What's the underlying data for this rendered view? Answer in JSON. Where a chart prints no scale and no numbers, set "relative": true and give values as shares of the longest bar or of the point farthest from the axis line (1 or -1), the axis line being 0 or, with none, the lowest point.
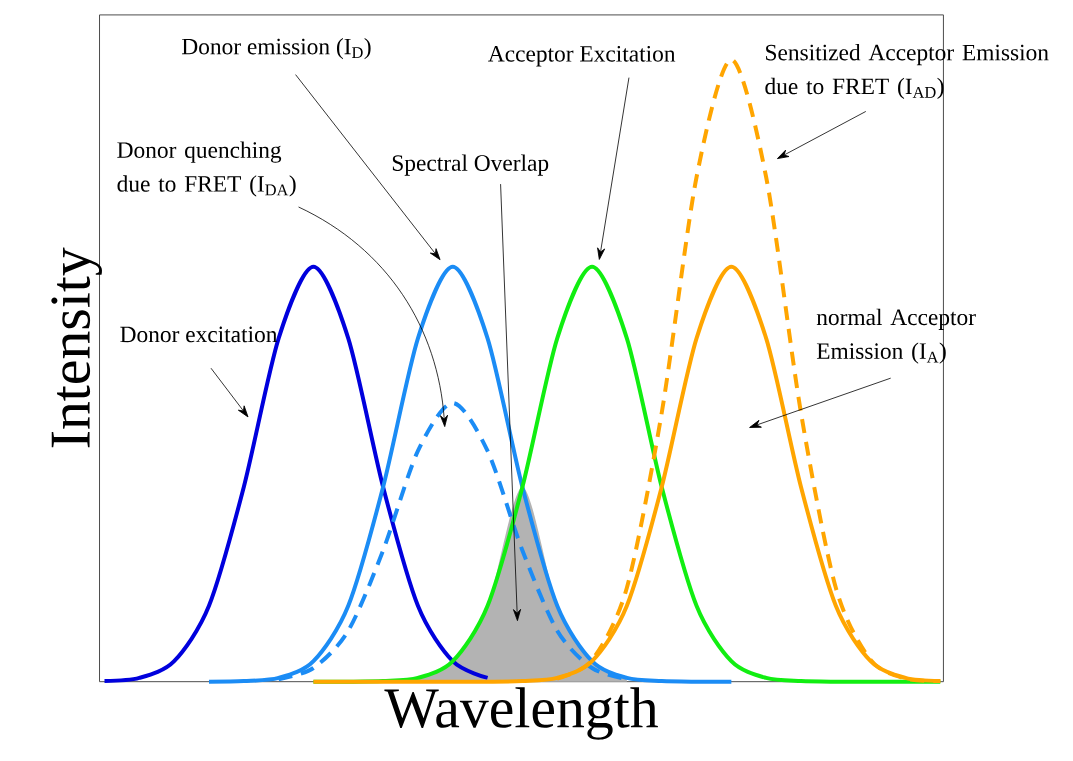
{
  "chart_data": {
    "type": "line",
    "relative": true,
    "xlabel": "Wavelength",
    "ylabel": "Intensity",
    "categories": [
      null,
      null,
      null,
      null,
      null,
      null,
      null,
      null,
      null,
      null,
      null,
      null,
      null,
      null,
      null,
      null,
      null,
      null,
      null,
      null,
      null,
      null,
      null,
      null,
      null
    ],
    "annotations": [
      "Spectral Overlap",
      "Donor excitation",
      "Donor emission (I$_{D}$)",
      "Donor quenching due to FRET (I$_{DA}$)",
      "Acceptor Excitation",
      "normal Acceptor Emission (I$_{A}$)",
      "Sensitized Acceptor Emission due to FRET (I$_{AD}$)"
    ],
    "series": [
      {
        "type": "area",
        "color": "#b3b3b3",
        "values": [
          null,
          null,
          null,
          null,
          null,
          null,
          null,
          null,
          null,
          0.006,
          0.033,
          0.122,
          0.313,
          0.122,
          0.033,
          0.006,
          null,
          null,
          null,
          null,
          null,
          null,
          null,
          null,
          null
        ]
      },
      {
        "color": "#0000dd",
        "values": [
          0.001,
          0.006,
          0.033,
          0.122,
          0.313,
          0.552,
          0.667,
          0.552,
          0.313,
          0.122,
          0.033,
          0.006,
          null,
          null,
          null,
          null,
          null,
          null,
          null,
          null,
          null,
          null,
          null,
          null,
          null
        ]
      },
      {
        "color": "#1b8cf5",
        "values": [
          null,
          null,
          null,
          0,
          0.001,
          0.006,
          0.033,
          0.122,
          0.313,
          0.552,
          0.667,
          0.552,
          0.313,
          0.122,
          0.033,
          0.006,
          0.001,
          0,
          0,
          null,
          null,
          null,
          null,
          null,
          null
        ]
      },
      {
        "color": "#1b8cf5",
        "line_style": "dashed",
        "values": [
          null,
          null,
          null,
          null,
          null,
          0.004,
          0.022,
          0.082,
          0.211,
          0.371,
          0.448,
          0.371,
          0.211,
          0.082,
          0.022,
          0.004,
          null,
          null,
          null,
          null,
          null,
          null,
          null,
          null,
          null
        ]
      },
      {
        "color": "#11ee11",
        "values": [
          null,
          null,
          null,
          null,
          null,
          null,
          0,
          0,
          0.001,
          0.006,
          0.033,
          0.122,
          0.313,
          0.552,
          0.667,
          0.552,
          0.313,
          0.122,
          0.033,
          0.006,
          0.001,
          0,
          0,
          0,
          0
        ]
      },
      {
        "color": "#ffa500",
        "values": [
          null,
          null,
          null,
          null,
          null,
          null,
          0,
          0,
          0,
          0,
          0,
          0,
          0.001,
          0.006,
          0.033,
          0.122,
          0.313,
          0.552,
          0.667,
          0.552,
          0.313,
          0.122,
          0.033,
          0.006,
          0.001
        ]
      },
      {
        "color": "#ffa500",
        "line_style": "dashed",
        "values": [
          null,
          null,
          null,
          null,
          null,
          null,
          null,
          null,
          null,
          null,
          null,
          null,
          null,
          0.005,
          0.035,
          0.151,
          0.432,
          0.811,
          1,
          0.811,
          0.432,
          0.151,
          0.035,
          0.005,
          0.001
        ]
      }
    ]
  }
}
